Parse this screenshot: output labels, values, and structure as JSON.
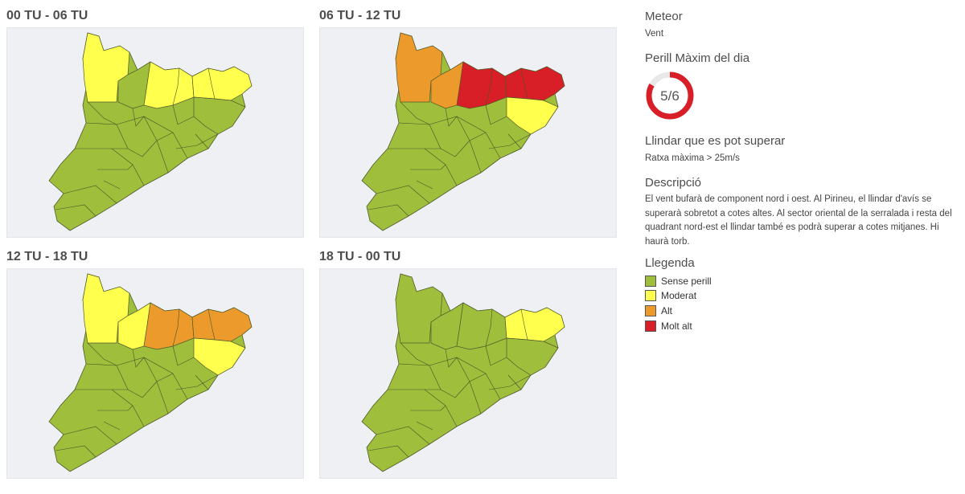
{
  "colors": {
    "sense_perill": "#9ebe3c",
    "moderat": "#ffff4d",
    "alt": "#ec9a2c",
    "molt_alt": "#d81e26",
    "map_bg": "#eef0f4"
  },
  "panels": [
    {
      "title": "00 TU - 06 TU",
      "levels": {
        "north_west": "moderat",
        "north_center": "moderat",
        "north_east": "moderat",
        "pyrenees_center": "sense_perill",
        "east": "sense_perill"
      }
    },
    {
      "title": "06 TU - 12 TU",
      "levels": {
        "north_west": "alt",
        "north_center": "molt_alt",
        "north_east": "molt_alt",
        "pyrenees_center": "alt",
        "east": "moderat"
      }
    },
    {
      "title": "12 TU - 18 TU",
      "levels": {
        "north_west": "moderat",
        "north_center": "alt",
        "north_east": "alt",
        "pyrenees_center": "moderat",
        "east": "moderat"
      }
    },
    {
      "title": "18 TU - 00 TU",
      "levels": {
        "north_west": "sense_perill",
        "north_center": "sense_perill",
        "north_east": "moderat",
        "pyrenees_center": "sense_perill",
        "east": "sense_perill"
      }
    }
  ],
  "sidebar": {
    "meteor_heading": "Meteor",
    "meteor_value": "Vent",
    "perill_heading": "Perill Màxim del dia",
    "perill_value": "5/6",
    "perill_fraction": 0.8333,
    "llindar_heading": "Llindar que es pot superar",
    "llindar_value": "Ratxa màxima > 25m/s",
    "descripcio_heading": "Descripció",
    "descripcio_lines": [
      "El vent bufarà de component nord i oest. Al Pirineu, el llindar d'avís se",
      "superarà sobretot a cotes altes. Al sector oriental de la serralada i resta del",
      "quadrant nord-est el llindar també es podrà superar a cotes mitjanes. Hi",
      "haurà torb."
    ],
    "llegenda_heading": "Llegenda",
    "legend": [
      {
        "label": "Sense perill",
        "color": "#9ebe3c"
      },
      {
        "label": "Moderat",
        "color": "#ffff4d"
      },
      {
        "label": "Alt",
        "color": "#ec9a2c"
      },
      {
        "label": "Molt alt",
        "color": "#d81e26"
      }
    ]
  }
}
